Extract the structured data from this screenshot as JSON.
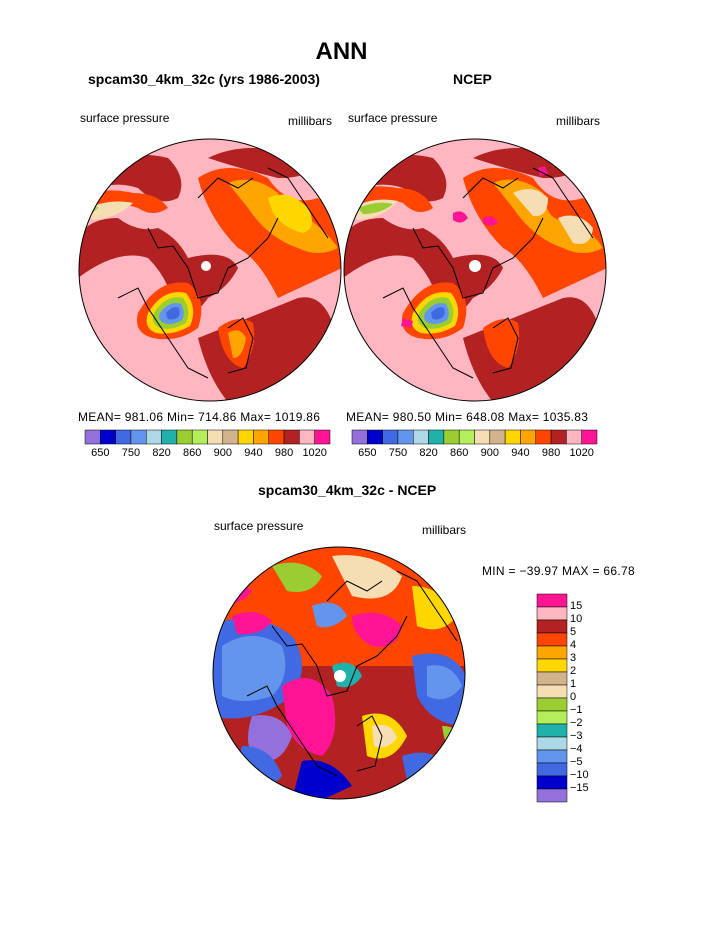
{
  "page_title": "ANN",
  "left_panel": {
    "title": "spcam30_4km_32c (yrs 1986-2003)",
    "variable": "surface pressure",
    "units": "millibars",
    "stats": "MEAN= 981.06   Min= 714.86   Max= 1019.86"
  },
  "right_panel": {
    "title": "NCEP",
    "variable": "surface pressure",
    "units": "millibars",
    "stats": "MEAN= 980.50   Min= 648.08   Max= 1035.83"
  },
  "diff_panel": {
    "title": "spcam30_4km_32c - NCEP",
    "variable": "surface pressure",
    "units": "millibars",
    "stats": "MIN = −39.97  MAX =   66.78"
  },
  "chart_data": [
    {
      "type": "heatmap",
      "title": "spcam30_4km_32c (yrs 1986-2003)",
      "colorbar": {
        "levels": [
          650,
          700,
          750,
          800,
          820,
          840,
          860,
          880,
          900,
          920,
          940,
          960,
          980,
          1000,
          1020
        ],
        "tick_labels": [
          "650",
          "750",
          "820",
          "860",
          "900",
          "940",
          "980",
          "1020"
        ],
        "colors": [
          "#9370DB",
          "#0000CD",
          "#4169E1",
          "#6495ED",
          "#ADD8E6",
          "#20B2AA",
          "#9ACD32",
          "#B4EE5A",
          "#F5DEB3",
          "#D2B48C",
          "#FFD700",
          "#FFA500",
          "#FF4500",
          "#B22222",
          "#FFB6C1",
          "#FF1493"
        ]
      },
      "mean": 981.06,
      "min": 714.86,
      "max": 1019.86
    },
    {
      "type": "heatmap",
      "title": "NCEP",
      "colorbar": {
        "levels": [
          650,
          700,
          750,
          800,
          820,
          840,
          860,
          880,
          900,
          920,
          940,
          960,
          980,
          1000,
          1020
        ],
        "tick_labels": [
          "650",
          "750",
          "820",
          "860",
          "900",
          "940",
          "980",
          "1020"
        ],
        "colors": [
          "#9370DB",
          "#0000CD",
          "#4169E1",
          "#6495ED",
          "#ADD8E6",
          "#20B2AA",
          "#9ACD32",
          "#B4EE5A",
          "#F5DEB3",
          "#D2B48C",
          "#FFD700",
          "#FFA500",
          "#FF4500",
          "#B22222",
          "#FFB6C1",
          "#FF1493"
        ]
      },
      "mean": 980.5,
      "min": 648.08,
      "max": 1035.83
    },
    {
      "type": "heatmap",
      "title": "spcam30_4km_32c - NCEP",
      "colorbar": {
        "levels": [
          "15",
          "10",
          "5",
          "4",
          "3",
          "2",
          "1",
          "0",
          "−1",
          "−2",
          "−3",
          "−4",
          "−5",
          "−10",
          "−15"
        ],
        "colors": [
          "#FF1493",
          "#FFB6C1",
          "#B22222",
          "#FF4500",
          "#FFA500",
          "#FFD700",
          "#D2B48C",
          "#F5DEB3",
          "#9ACD32",
          "#B4EE5A",
          "#20B2AA",
          "#ADD8E6",
          "#6495ED",
          "#4169E1",
          "#0000CD",
          "#9370DB"
        ]
      },
      "min": -39.97,
      "max": 66.78
    }
  ]
}
